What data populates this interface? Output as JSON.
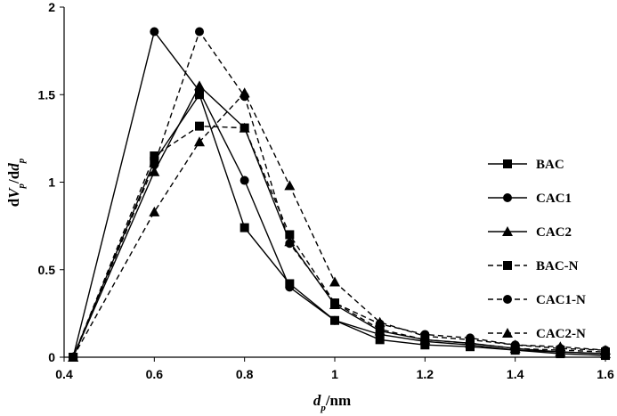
{
  "chart_data": {
    "type": "line",
    "title": "",
    "xlabel": "dp/nm",
    "ylabel": "dVp/ddp",
    "xlim": [
      0.4,
      1.6
    ],
    "ylim": [
      0,
      2
    ],
    "x_ticks": [
      0.4,
      0.6,
      0.8,
      1.0,
      1.2,
      1.4,
      1.6
    ],
    "x_tick_labels": [
      "0.4",
      "0.6",
      "0.8",
      "1",
      "1.2",
      "1.4",
      "1.6"
    ],
    "y_ticks": [
      0,
      0.5,
      1.0,
      1.5,
      2.0
    ],
    "y_tick_labels": [
      "0",
      "0.5",
      "1",
      "1.5",
      "2"
    ],
    "grid": false,
    "legend_position": "right",
    "series": [
      {
        "name": "BAC",
        "marker": "square",
        "dash": "solid",
        "x": [
          0.42,
          0.6,
          0.7,
          0.8,
          0.9,
          1.0,
          1.1,
          1.2,
          1.3,
          1.4,
          1.5,
          1.6
        ],
        "y": [
          0.0,
          1.12,
          1.5,
          0.74,
          0.42,
          0.21,
          0.1,
          0.07,
          0.06,
          0.04,
          0.02,
          0.01
        ]
      },
      {
        "name": "CAC1",
        "marker": "circle",
        "dash": "solid",
        "x": [
          0.42,
          0.6,
          0.7,
          0.8,
          0.9,
          1.0,
          1.1,
          1.2,
          1.3,
          1.4,
          1.5,
          1.6
        ],
        "y": [
          0.0,
          1.86,
          1.52,
          1.01,
          0.4,
          0.21,
          0.13,
          0.09,
          0.07,
          0.04,
          0.03,
          0.02
        ]
      },
      {
        "name": "CAC2",
        "marker": "triangle",
        "dash": "solid",
        "x": [
          0.42,
          0.6,
          0.7,
          0.8,
          0.9,
          1.0,
          1.1,
          1.2,
          1.3,
          1.4,
          1.5,
          1.6
        ],
        "y": [
          0.0,
          1.06,
          1.55,
          1.31,
          0.66,
          0.3,
          0.15,
          0.1,
          0.08,
          0.05,
          0.03,
          0.02
        ]
      },
      {
        "name": "BAC-N",
        "marker": "square",
        "dash": "dashed",
        "x": [
          0.42,
          0.6,
          0.7,
          0.8,
          0.9,
          1.0,
          1.1,
          1.2,
          1.3,
          1.4,
          1.5,
          1.6
        ],
        "y": [
          0.0,
          1.15,
          1.32,
          1.31,
          0.7,
          0.31,
          0.16,
          0.1,
          0.08,
          0.05,
          0.04,
          0.03
        ]
      },
      {
        "name": "CAC1-N",
        "marker": "circle",
        "dash": "dashed",
        "x": [
          0.42,
          0.6,
          0.7,
          0.8,
          0.9,
          1.0,
          1.1,
          1.2,
          1.3,
          1.4,
          1.5,
          1.6
        ],
        "y": [
          0.0,
          1.1,
          1.86,
          1.49,
          0.65,
          0.31,
          0.19,
          0.13,
          0.11,
          0.07,
          0.05,
          0.04
        ]
      },
      {
        "name": "CAC2-N",
        "marker": "triangle",
        "dash": "dashed",
        "x": [
          0.42,
          0.6,
          0.7,
          0.8,
          0.9,
          1.0,
          1.1,
          1.2,
          1.3,
          1.4,
          1.5,
          1.6
        ],
        "y": [
          0.0,
          0.83,
          1.23,
          1.51,
          0.98,
          0.43,
          0.2,
          0.12,
          0.1,
          0.07,
          0.06,
          0.04
        ]
      }
    ]
  }
}
